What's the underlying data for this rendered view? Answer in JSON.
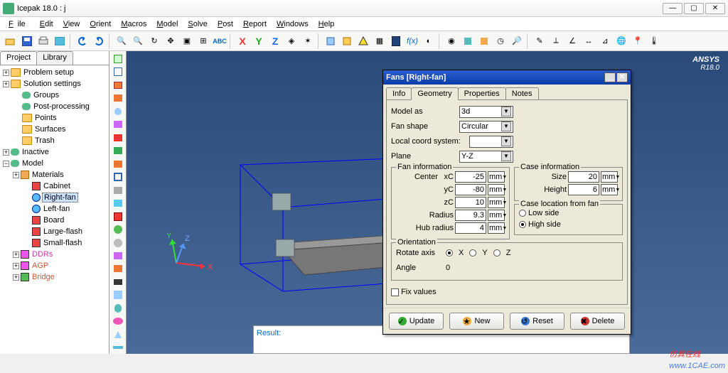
{
  "app": {
    "title": "Icepak 18.0 : j",
    "brand": "ANSYS",
    "version": "R18.0"
  },
  "menus": [
    "File",
    "Edit",
    "View",
    "Orient",
    "Macros",
    "Model",
    "Solve",
    "Post",
    "Report",
    "Windows",
    "Help"
  ],
  "axis_labels": {
    "x": "X",
    "y": "Y",
    "z": "Z",
    "toolbar_x": "X",
    "toolbar_y": "Y",
    "toolbar_z": "Z",
    "toolbar_abc": "ABC"
  },
  "panel_tabs": {
    "project": "Project",
    "library": "Library"
  },
  "tree": {
    "items": [
      {
        "label": "Problem setup",
        "depth": 0,
        "exp": "+",
        "icon": "folder"
      },
      {
        "label": "Solution settings",
        "depth": 0,
        "exp": "+",
        "icon": "folder"
      },
      {
        "label": "Groups",
        "depth": 1,
        "icon": "cyl-green"
      },
      {
        "label": "Post-processing",
        "depth": 1,
        "icon": "cyl-teal"
      },
      {
        "label": "Points",
        "depth": 1,
        "icon": "folder"
      },
      {
        "label": "Surfaces",
        "depth": 1,
        "icon": "folder"
      },
      {
        "label": "Trash",
        "depth": 1,
        "icon": "folder"
      },
      {
        "label": "Inactive",
        "depth": 0,
        "exp": "+",
        "icon": "cyl"
      },
      {
        "label": "Model",
        "depth": 0,
        "exp": "−",
        "icon": "cyl-blue"
      },
      {
        "label": "Materials",
        "depth": 1,
        "exp": "+",
        "icon": "mat"
      },
      {
        "label": "Cabinet",
        "depth": 2,
        "icon": "red"
      },
      {
        "label": "Right-fan",
        "depth": 2,
        "icon": "fan",
        "selected": true
      },
      {
        "label": "Left-fan",
        "depth": 2,
        "icon": "fan"
      },
      {
        "label": "Board",
        "depth": 2,
        "icon": "red"
      },
      {
        "label": "Large-flash",
        "depth": 2,
        "icon": "red"
      },
      {
        "label": "Small-flash",
        "depth": 2,
        "icon": "red"
      },
      {
        "label": "DDRs",
        "depth": 1,
        "exp": "+",
        "icon": "mag",
        "color": "#dd33aa"
      },
      {
        "label": "AGP",
        "depth": 1,
        "exp": "+",
        "icon": "mag",
        "color": "#cc5533"
      },
      {
        "label": "Bridge",
        "depth": 1,
        "exp": "+",
        "icon": "grn",
        "color": "#cc5533"
      }
    ]
  },
  "dialog": {
    "title": "Fans [Right-fan]",
    "tabs": [
      "Info",
      "Geometry",
      "Properties",
      "Notes"
    ],
    "active_tab": 1,
    "model_as": {
      "label": "Model as",
      "value": "3d"
    },
    "fan_shape": {
      "label": "Fan shape",
      "value": "Circular"
    },
    "coord": {
      "label": "Local coord system:",
      "value": ""
    },
    "plane": {
      "label": "Plane",
      "value": "Y-Z"
    },
    "fan_info": {
      "legend": "Fan information",
      "center_label": "Center",
      "xC": {
        "label": "xC",
        "value": "-25",
        "unit": "mm"
      },
      "yC": {
        "label": "yC",
        "value": "-80",
        "unit": "mm"
      },
      "zC": {
        "label": "zC",
        "value": "10",
        "unit": "mm"
      },
      "radius": {
        "label": "Radius",
        "value": "9.3",
        "unit": "mm"
      },
      "hub": {
        "label": "Hub radius",
        "value": "4",
        "unit": "mm"
      }
    },
    "case_info": {
      "legend": "Case information",
      "size": {
        "label": "Size",
        "value": "20",
        "unit": "mm"
      },
      "height": {
        "label": "Height",
        "value": "6",
        "unit": "mm"
      }
    },
    "case_loc": {
      "legend": "Case location from fan",
      "low": "Low side",
      "high": "High side",
      "selected": "high"
    },
    "orientation": {
      "legend": "Orientation",
      "rotate_label": "Rotate axis",
      "opts": [
        "X",
        "Y",
        "Z"
      ],
      "angle_label": "Angle",
      "angle_value": "0"
    },
    "fix_values": "Fix values",
    "buttons": {
      "update": "Update",
      "new": "New",
      "reset": "Reset",
      "delete": "Delete"
    }
  },
  "result_label": "Result:",
  "watermark": {
    "cn": "仿真在线",
    "en": "www.1CAE.com"
  },
  "colors": {
    "viewport_top": "#2a4a7a",
    "viewport_bot": "#4a6a9a",
    "dialog_title": "#0a3daa",
    "panel_bg": "#ece9d8",
    "axis_x": "#ff3333",
    "axis_y": "#33dd33",
    "axis_z": "#5599ff",
    "pink": "#ff44aa",
    "wire": "#0000ff",
    "btn_update": "#33aa33",
    "btn_new": "#ddaa22",
    "btn_reset": "#3377cc",
    "btn_delete": "#cc3333"
  }
}
